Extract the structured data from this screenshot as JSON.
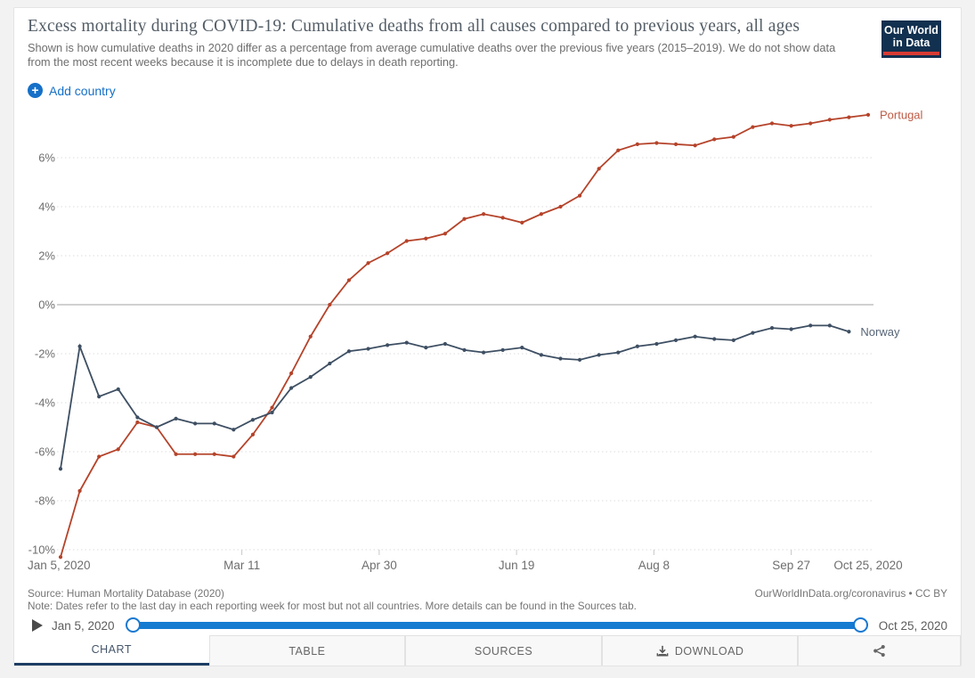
{
  "header": {
    "title": "Excess mortality during COVID-19: Cumulative deaths from all causes compared to previous years, all ages",
    "subtitle": "Shown is how cumulative deaths in 2020 differ as a percentage from average cumulative deaths over the previous five years (2015–2019). We do not show data from the most recent weeks because it is incomplete due to delays in death reporting.",
    "logo": {
      "line1": "Our World",
      "line2": "in Data"
    },
    "add_country_label": "Add country"
  },
  "icons": {
    "add_country": "plus-circle",
    "play": "play-triangle",
    "download": "download-tray",
    "share": "share-nodes"
  },
  "chart_data": {
    "type": "line",
    "title": "Excess mortality during COVID-19: Cumulative deaths from all causes compared to previous years, all ages",
    "xlabel": "",
    "ylabel": "",
    "ylim": [
      -10.5,
      8.2
    ],
    "grid": "horizontal-dashed",
    "legend_position": "line-end-labels",
    "total_days": 294,
    "x_ticks": [
      {
        "label": "Jan 5, 2020",
        "day": 0,
        "align": "start",
        "tick": false
      },
      {
        "label": "Mar 11",
        "day": 66,
        "align": "middle",
        "tick": true
      },
      {
        "label": "Apr 30",
        "day": 116,
        "align": "middle",
        "tick": true
      },
      {
        "label": "Jun 19",
        "day": 166,
        "align": "middle",
        "tick": true
      },
      {
        "label": "Aug 8",
        "day": 216,
        "align": "middle",
        "tick": true
      },
      {
        "label": "Sep 27",
        "day": 266,
        "align": "middle",
        "tick": true
      },
      {
        "label": "Oct 25, 2020",
        "day": 294,
        "align": "middle",
        "tick": false
      }
    ],
    "y_ticks": [
      {
        "value": 6,
        "label": "6%"
      },
      {
        "value": 4,
        "label": "4%"
      },
      {
        "value": 2,
        "label": "2%"
      },
      {
        "value": 0,
        "label": "0%"
      },
      {
        "value": -2,
        "label": "-2%"
      },
      {
        "value": -4,
        "label": "-4%"
      },
      {
        "value": -6,
        "label": "-6%"
      },
      {
        "value": -8,
        "label": "-8%"
      },
      {
        "value": -10,
        "label": "-10%"
      }
    ],
    "week_interval_days": 7,
    "series": [
      {
        "name": "Portugal",
        "color": "#b5432a",
        "values": [
          -10.3,
          -7.6,
          -6.2,
          -5.9,
          -4.8,
          -5.0,
          -6.1,
          -6.1,
          -6.1,
          -6.2,
          -5.3,
          -4.2,
          -2.8,
          -1.3,
          0.0,
          1.0,
          1.7,
          2.1,
          2.6,
          2.7,
          2.9,
          3.5,
          3.7,
          3.55,
          3.35,
          3.7,
          4.0,
          4.45,
          5.55,
          6.3,
          6.55,
          6.6,
          6.55,
          6.5,
          6.75,
          6.85,
          7.25,
          7.4,
          7.3,
          7.4,
          7.55,
          7.65,
          7.75
        ]
      },
      {
        "name": "Norway",
        "color": "#3e4f63",
        "values": [
          -6.7,
          -1.7,
          -3.75,
          -3.45,
          -4.6,
          -5.0,
          -4.65,
          -4.85,
          -4.85,
          -5.1,
          -4.7,
          -4.4,
          -3.4,
          -2.95,
          -2.4,
          -1.9,
          -1.8,
          -1.65,
          -1.55,
          -1.75,
          -1.6,
          -1.85,
          -1.95,
          -1.85,
          -1.75,
          -2.05,
          -2.2,
          -2.25,
          -2.05,
          -1.95,
          -1.7,
          -1.6,
          -1.45,
          -1.3,
          -1.4,
          -1.45,
          -1.15,
          -0.95,
          -1.0,
          -0.85,
          -0.85,
          -1.1
        ]
      }
    ]
  },
  "footer": {
    "source": "Source: Human Mortality Database (2020)",
    "note": "Note: Dates refer to the last day in each reporting week for most but not all countries. More details can be found in the Sources tab.",
    "attribution": "OurWorldInData.org/coronavirus • CC BY"
  },
  "timeline": {
    "start": "Jan 5, 2020",
    "end": "Oct 25, 2020"
  },
  "tabs": {
    "active": "CHART",
    "items": [
      {
        "label": "CHART"
      },
      {
        "label": "TABLE"
      },
      {
        "label": "SOURCES"
      },
      {
        "label": "DOWNLOAD"
      }
    ]
  }
}
